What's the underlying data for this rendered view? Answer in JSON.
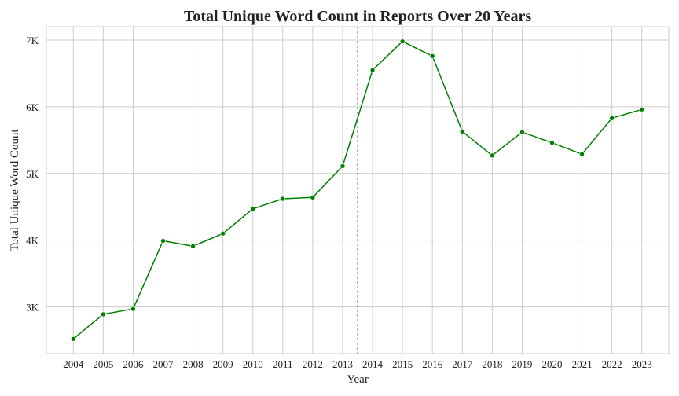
{
  "chart_data": {
    "type": "line",
    "title": "Total Unique Word Count in Reports Over 20 Years",
    "xlabel": "Year",
    "ylabel": "Total Unique Word Count",
    "x": [
      "2004",
      "2005",
      "2006",
      "2007",
      "2008",
      "2009",
      "2010",
      "2011",
      "2012",
      "2013",
      "2014",
      "2015",
      "2016",
      "2017",
      "2018",
      "2019",
      "2020",
      "2021",
      "2022",
      "2023"
    ],
    "series": [
      {
        "values": [
          2520,
          2890,
          2970,
          3990,
          3910,
          4100,
          4470,
          4620,
          4640,
          5110,
          6550,
          6980,
          6760,
          5630,
          5270,
          5620,
          5460,
          5290,
          5830,
          5960
        ]
      }
    ],
    "yticks": [
      3000,
      4000,
      5000,
      6000,
      7000
    ],
    "ytick_labels": [
      "3K",
      "4K",
      "5K",
      "6K",
      "7K"
    ],
    "ylim": [
      2300,
      7200
    ],
    "vline_x": 2013.5,
    "grid": true,
    "line_color": "#008000",
    "marker": "circle"
  }
}
